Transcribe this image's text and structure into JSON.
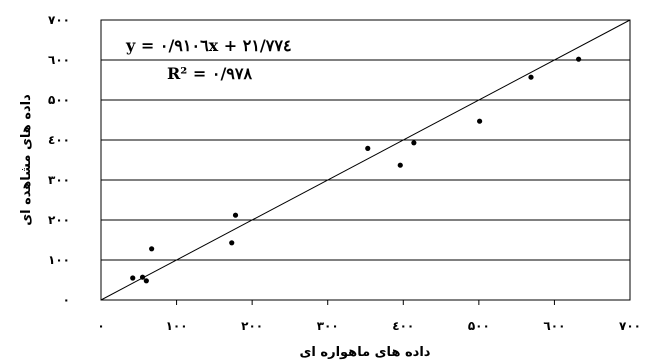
{
  "chart_data": {
    "type": "scatter",
    "xlabel": "داده های ماهواره ای",
    "ylabel": "داده های مشاهده ای",
    "xlim": [
      0,
      700
    ],
    "ylim": [
      0,
      700
    ],
    "x_ticks": [
      {
        "value": 0,
        "label": "۰"
      },
      {
        "value": 100,
        "label": "۱۰۰"
      },
      {
        "value": 200,
        "label": "۲۰۰"
      },
      {
        "value": 300,
        "label": "۳۰۰"
      },
      {
        "value": 400,
        "label": "٤۰۰"
      },
      {
        "value": 500,
        "label": "۵۰۰"
      },
      {
        "value": 600,
        "label": "٦۰۰"
      },
      {
        "value": 700,
        "label": "۷۰۰"
      }
    ],
    "y_ticks": [
      {
        "value": 0,
        "label": "۰"
      },
      {
        "value": 100,
        "label": "۱۰۰"
      },
      {
        "value": 200,
        "label": "۲۰۰"
      },
      {
        "value": 300,
        "label": "۳۰۰"
      },
      {
        "value": 400,
        "label": "٤۰۰"
      },
      {
        "value": 500,
        "label": "۵۰۰"
      },
      {
        "value": 600,
        "label": "٦۰۰"
      },
      {
        "value": 700,
        "label": "۷۰۰"
      }
    ],
    "grid": "horizontal",
    "points": [
      {
        "x": 42,
        "y": 55
      },
      {
        "x": 55,
        "y": 57
      },
      {
        "x": 60,
        "y": 48
      },
      {
        "x": 67,
        "y": 128
      },
      {
        "x": 173,
        "y": 143
      },
      {
        "x": 178,
        "y": 212
      },
      {
        "x": 353,
        "y": 379
      },
      {
        "x": 396,
        "y": 337
      },
      {
        "x": 414,
        "y": 393
      },
      {
        "x": 501,
        "y": 447
      },
      {
        "x": 569,
        "y": 557
      },
      {
        "x": 632,
        "y": 602
      }
    ],
    "reference_line": {
      "from": [
        0,
        0
      ],
      "to": [
        700,
        700
      ]
    },
    "annotations": [
      {
        "name": "regression-equation",
        "text": "y = ۰/۹۱۰٦x + ۲۱/۷۷٤"
      },
      {
        "name": "r-squared",
        "text": "R² = ۰/۹۷۸"
      }
    ]
  }
}
